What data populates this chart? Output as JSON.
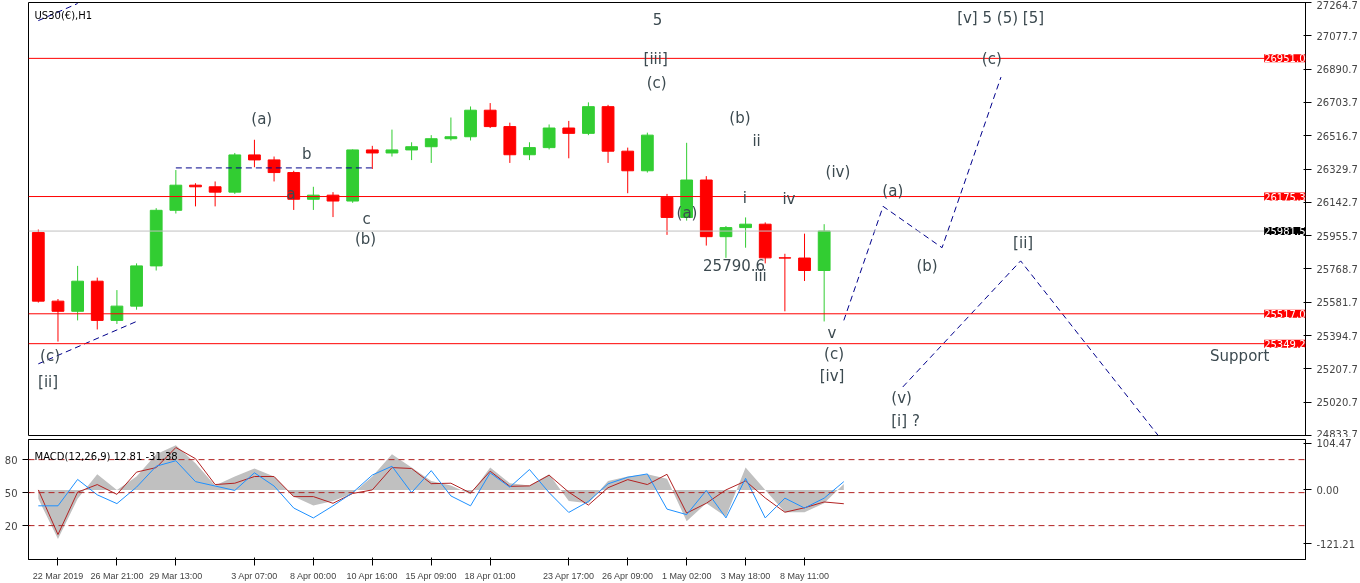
{
  "chart_data": [
    {
      "type": "candlestick",
      "title": "US30(€),H1",
      "tick_labels": "y",
      "ylim": [
        24833.7,
        27264.7
      ],
      "yticks": [
        24833.7,
        25020.7,
        25207.7,
        25394.7,
        25581.7,
        25768.7,
        25955.7,
        26142.7,
        26329.7,
        26516.7,
        26703.7,
        26890.7,
        27077.7,
        27264.7
      ],
      "categories": [
        null,
        null,
        null,
        null,
        null,
        null,
        null,
        null,
        null,
        null,
        null,
        null,
        null,
        null,
        null,
        null,
        null,
        null,
        null,
        null,
        null,
        null,
        null,
        null,
        null,
        null,
        null,
        null,
        null,
        null,
        null,
        null,
        null,
        null,
        null,
        null,
        null,
        null,
        null,
        null,
        null,
        null,
        null,
        null,
        null,
        null,
        null,
        null,
        null,
        null,
        null,
        null,
        null,
        null,
        null,
        null,
        null,
        null,
        null,
        null,
        null,
        null,
        null,
        null,
        null
      ],
      "ohlc": [
        [
          25973,
          25990,
          25580,
          25588
        ],
        [
          25588,
          25600,
          25361,
          25531
        ],
        [
          25531,
          25786,
          25480,
          25700
        ],
        [
          25700,
          25720,
          25429,
          25480
        ],
        [
          25480,
          25650,
          25460,
          25560
        ],
        [
          25560,
          25800,
          25540,
          25786
        ],
        [
          25786,
          26110,
          25760,
          26098
        ],
        [
          26098,
          26324,
          26080,
          26239
        ],
        [
          26239,
          26250,
          26120,
          26230
        ],
        [
          26230,
          26260,
          26120,
          26200
        ],
        [
          26200,
          26420,
          26190,
          26409
        ],
        [
          26409,
          26494,
          26340,
          26381
        ],
        [
          26381,
          26400,
          26260,
          26310
        ],
        [
          26310,
          26320,
          26100,
          26160
        ],
        [
          26160,
          26230,
          26100,
          26183
        ],
        [
          26183,
          26200,
          26060,
          26150
        ],
        [
          26150,
          26440,
          26140,
          26437
        ],
        [
          26437,
          26460,
          26330,
          26420
        ],
        [
          26420,
          26551,
          26400,
          26437
        ],
        [
          26437,
          26480,
          26380,
          26455
        ],
        [
          26455,
          26520,
          26364,
          26500
        ],
        [
          26500,
          26619,
          26490,
          26511
        ],
        [
          26511,
          26681,
          26490,
          26660
        ],
        [
          26660,
          26700,
          26560,
          26568
        ],
        [
          26568,
          26590,
          26364,
          26410
        ],
        [
          26410,
          26480,
          26380,
          26450
        ],
        [
          26450,
          26580,
          26440,
          26560
        ],
        [
          26560,
          26600,
          26390,
          26530
        ],
        [
          26530,
          26704,
          26520,
          26680
        ],
        [
          26680,
          26690,
          26364,
          26430
        ],
        [
          26430,
          26450,
          26194,
          26320
        ],
        [
          26320,
          26534,
          26310,
          26520
        ],
        [
          26171,
          26190,
          25960,
          26058
        ],
        [
          26058,
          26477,
          26040,
          26268
        ],
        [
          26268,
          26290,
          25900,
          25950
        ],
        [
          25950,
          26010,
          25831,
          26001
        ],
        [
          26001,
          26058,
          25888,
          26020
        ],
        [
          26020,
          26030,
          25800,
          25831
        ],
        [
          25831,
          25854,
          25531,
          25830
        ],
        [
          25830,
          25967,
          25701,
          25760
        ],
        [
          25760,
          26020,
          25474,
          25981.5
        ],
        null,
        null,
        null,
        null,
        null,
        null,
        null,
        null,
        null,
        null,
        null,
        null,
        null,
        null,
        null,
        null,
        null,
        null,
        null,
        null,
        null,
        null,
        null,
        null
      ],
      "series": [
        {
          "type": "line",
          "color": "#00008b",
          "line_style": "dashed",
          "values": [
            null,
            null,
            null,
            null,
            null,
            null,
            null,
            null,
            null,
            null,
            null,
            null,
            null,
            null,
            null,
            null,
            null,
            null,
            null,
            null,
            null,
            null,
            null,
            null,
            null,
            null,
            null,
            null,
            null,
            null,
            null,
            null,
            null,
            null,
            null,
            null,
            null,
            null,
            null,
            null,
            null,
            25480,
            null,
            26120,
            null,
            null,
            25888,
            null,
            null,
            26846,
            null,
            null,
            null,
            null,
            null,
            null,
            null,
            null,
            null,
            null,
            null,
            null,
            null,
            null,
            null
          ]
        },
        {
          "type": "line",
          "color": "#00008b",
          "line_style": "dashed",
          "values": [
            null,
            null,
            null,
            null,
            null,
            null,
            null,
            null,
            null,
            null,
            null,
            null,
            null,
            null,
            null,
            null,
            null,
            null,
            null,
            null,
            null,
            null,
            null,
            null,
            null,
            null,
            null,
            null,
            null,
            null,
            null,
            null,
            null,
            null,
            null,
            null,
            null,
            null,
            null,
            null,
            null,
            null,
            null,
            null,
            25106,
            null,
            null,
            null,
            null,
            null,
            25814,
            null,
            null,
            null,
            null,
            null,
            null,
            24834,
            null,
            null,
            null,
            null,
            null,
            null,
            null
          ]
        },
        {
          "type": "line",
          "color": "#00008b",
          "line_style": "dashed",
          "values": [
            27163,
            null,
            27259,
            null,
            null,
            null,
            null,
            null,
            null,
            null,
            null,
            null,
            null,
            null,
            null,
            null,
            null,
            null,
            null,
            null,
            null,
            null,
            null,
            null,
            null,
            null,
            null,
            null,
            null,
            null,
            null,
            null,
            null,
            null,
            null,
            null,
            null,
            null,
            null,
            null,
            null,
            null,
            null,
            null,
            null,
            null,
            null,
            null,
            null,
            null,
            null,
            null,
            null,
            null,
            null,
            null,
            null,
            null,
            null,
            null,
            null,
            null,
            null,
            null,
            null
          ]
        },
        {
          "type": "line",
          "color": "#00008b",
          "line_style": "dashed",
          "values": [
            25236,
            null,
            null,
            null,
            null,
            25474,
            null,
            null,
            null,
            null,
            null,
            null,
            null,
            null,
            null,
            null,
            null,
            null,
            null,
            null,
            null,
            null,
            null,
            null,
            null,
            null,
            null,
            null,
            null,
            null,
            null,
            null,
            null,
            null,
            null,
            null,
            null,
            null,
            null,
            null,
            null,
            null,
            null,
            null,
            null,
            null,
            null,
            null,
            null,
            null,
            null,
            null,
            null,
            null,
            null,
            null,
            null,
            null,
            null,
            null,
            null,
            null,
            null,
            null,
            null
          ]
        },
        {
          "type": "line",
          "color": "#00008b",
          "line_style": "dashed",
          "values": [
            null,
            null,
            null,
            null,
            null,
            null,
            null,
            26336,
            null,
            null,
            null,
            null,
            null,
            null,
            null,
            null,
            null,
            26336,
            null,
            null,
            null,
            null,
            null,
            null,
            null,
            null,
            null,
            null,
            null,
            null,
            null,
            null,
            null,
            null,
            null,
            null,
            null,
            null,
            null,
            null,
            null,
            null,
            null,
            null,
            null,
            null,
            null,
            null,
            null,
            null,
            null,
            null,
            null,
            null,
            null,
            null,
            null,
            null,
            null,
            null,
            null,
            null,
            null,
            null,
            null
          ]
        }
      ],
      "ref_lines": [
        {
          "axis": "y",
          "value": 26951.0,
          "label": "26951.0",
          "color": "#ff0000"
        },
        {
          "axis": "y",
          "value": 26175.3,
          "label": "26175.3",
          "color": "#ff0000"
        },
        {
          "axis": "y",
          "value": 25981.5,
          "label": "25981.5",
          "color": "#c0c0c0"
        },
        {
          "axis": "y",
          "value": 25517.0,
          "label": "25517.0",
          "color": "#ff0000"
        },
        {
          "axis": "y",
          "value": 25349.2,
          "label": "25349.2",
          "color": "#ff0000"
        }
      ],
      "annotations": [
        "(a)",
        "b",
        "a",
        "c",
        "(b)",
        "(c)",
        "[ii]",
        "5",
        "[iii]",
        "(c)",
        "(b)",
        "ii",
        "(a)",
        "i",
        "iv",
        "iii",
        "25790.6",
        "(iv)",
        "v",
        "(c)",
        "[iv]",
        "(a)",
        "(b)",
        "(c)",
        "[ii]",
        "(v)",
        "[i] ?",
        "[v] 5 (5) [5]",
        "Support"
      ]
    },
    {
      "type": "line",
      "title": "MACD(12,26,9) 12.81 -31.38",
      "ylim": [
        -156,
        113
      ],
      "yticks": [
        104.47,
        {
          "value": 0,
          "label": "0.00"
        },
        -121.21
      ],
      "y2lim": [
        -10.8,
        98.3
      ],
      "y2ticks": [
        80,
        50,
        20
      ],
      "categories": [
        null,
        "22 Mar 2019",
        null,
        null,
        "26 Mar 21:00",
        null,
        null,
        "29 Mar 13:00",
        null,
        null,
        null,
        "3 Apr 07:00",
        null,
        null,
        "8 Apr 00:00",
        null,
        null,
        "10 Apr 16:00",
        null,
        null,
        "15 Apr 09:00",
        null,
        null,
        "18 Apr 01:00",
        null,
        null,
        null,
        "23 Apr 17:00",
        null,
        null,
        "26 Apr 09:00",
        null,
        null,
        "1 May 02:00",
        null,
        null,
        "3 May 18:00",
        null,
        null,
        "8 May 11:00",
        null,
        null,
        null,
        null,
        null,
        null,
        null,
        null,
        null,
        null,
        null,
        null,
        null,
        null,
        null,
        null,
        null,
        null,
        null,
        null,
        null,
        null,
        null,
        null,
        null
      ],
      "ref_lines": [
        {
          "axis": "y2",
          "value": 80,
          "color": "#b22222",
          "line_style": "dashed"
        },
        {
          "axis": "y2",
          "value": 50,
          "color": "#b22222",
          "line_style": "dashed"
        },
        {
          "axis": "y2",
          "value": 20,
          "color": "#b22222",
          "line_style": "dashed"
        }
      ],
      "series": [
        {
          "type": "area",
          "color": "#c0c0c0",
          "values": [
            -20,
            -110,
            -20,
            35,
            0,
            30,
            80,
            100,
            60,
            10,
            30,
            48,
            30,
            -15,
            -35,
            -25,
            -8,
            30,
            80,
            50,
            20,
            10,
            -10,
            50,
            15,
            10,
            35,
            -25,
            -30,
            20,
            30,
            35,
            25,
            -70,
            -30,
            -60,
            50,
            0,
            -50,
            -50,
            -30,
            13,
            null,
            null,
            null,
            null,
            null,
            null,
            null,
            null,
            null,
            null,
            null,
            null,
            null,
            null,
            null,
            null,
            null,
            null,
            null,
            null,
            null,
            null,
            null
          ]
        },
        {
          "type": "line",
          "color": "#b22222",
          "values": [
            0,
            -100,
            -5,
            12,
            -10,
            40,
            50,
            95,
            70,
            12,
            15,
            30,
            30,
            -15,
            -15,
            -30,
            -8,
            0,
            50,
            48,
            14,
            15,
            -7,
            42,
            8,
            9,
            33,
            -5,
            -34,
            5,
            23,
            12,
            35,
            -52,
            -30,
            0,
            20,
            -18,
            -50,
            -40,
            -27,
            -31,
            null,
            null,
            null,
            null,
            null,
            null,
            null,
            null,
            null,
            null,
            null,
            null,
            null,
            null,
            null,
            null,
            null,
            null,
            null,
            null,
            null,
            null,
            null
          ]
        },
        {
          "type": "line",
          "color": "#1e90ff",
          "axis": "y2",
          "values": [
            38,
            38,
            62,
            48,
            40,
            55,
            74,
            79,
            60,
            56,
            52,
            68,
            56,
            36,
            27,
            38,
            50,
            66,
            74,
            50,
            70,
            47,
            38,
            68,
            55,
            71,
            50,
            32,
            42,
            58,
            64,
            67,
            35,
            30,
            52,
            27,
            63,
            27,
            45,
            36,
            45,
            60,
            null,
            null,
            null,
            null,
            null,
            null,
            null,
            null,
            null,
            null,
            null,
            null,
            null,
            null,
            null,
            null,
            null,
            null,
            null,
            null,
            null,
            null,
            null
          ]
        }
      ]
    }
  ]
}
